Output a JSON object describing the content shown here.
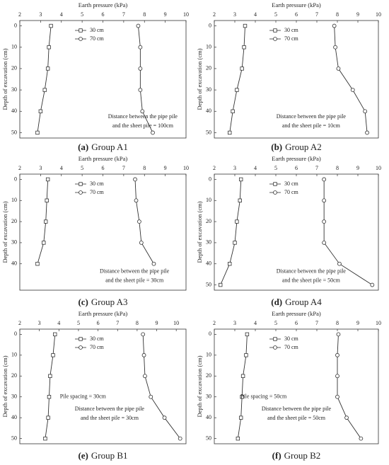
{
  "chart_data": [
    {
      "type": "line",
      "caption_label": "(a)",
      "caption": "Group A1",
      "x_label": "Earth pressure (kPa)",
      "y_label": "Depth of excavation (cm)",
      "xlim": [
        2,
        10
      ],
      "xticks": [
        2,
        3,
        4,
        5,
        6,
        7,
        8,
        9,
        10
      ],
      "ylim": [
        -2.5,
        52.5
      ],
      "yticks": [
        0,
        10,
        20,
        30,
        40,
        50
      ],
      "y": [
        0,
        10,
        20,
        30,
        40,
        50
      ],
      "series": [
        {
          "name": "30 cm",
          "marker": "square",
          "values": [
            3.5,
            3.4,
            3.35,
            3.2,
            3.0,
            2.85
          ]
        },
        {
          "name": "70 cm",
          "marker": "circle",
          "values": [
            7.7,
            7.8,
            7.8,
            7.8,
            7.9,
            8.4
          ]
        }
      ],
      "annotations": [
        "Distance between the pipe pile",
        "and the sheet pile = 100cm"
      ]
    },
    {
      "type": "line",
      "caption_label": "(b)",
      "caption": "Group A2",
      "x_label": "Earth pressure (kPa)",
      "y_label": "Depth of excavation (cm)",
      "xlim": [
        2,
        10
      ],
      "xticks": [
        2,
        3,
        4,
        5,
        6,
        7,
        8,
        9,
        10
      ],
      "ylim": [
        -2.5,
        52.5
      ],
      "yticks": [
        0,
        10,
        20,
        30,
        40,
        50
      ],
      "y": [
        0,
        10,
        20,
        30,
        40,
        50
      ],
      "series": [
        {
          "name": "30 cm",
          "marker": "square",
          "values": [
            3.5,
            3.45,
            3.35,
            3.1,
            2.9,
            2.75
          ]
        },
        {
          "name": "70 cm",
          "marker": "circle",
          "values": [
            7.85,
            7.9,
            8.05,
            8.75,
            9.35,
            9.45
          ]
        }
      ],
      "annotations": [
        "Distance between the pipe pile",
        "and the sheet pile = 10cm"
      ]
    },
    {
      "type": "line",
      "caption_label": "(c)",
      "caption": "Group A3",
      "x_label": "Earth pressure (kPa)",
      "y_label": "Depth of excavation (cm)",
      "xlim": [
        2,
        10
      ],
      "xticks": [
        2,
        3,
        4,
        5,
        6,
        7,
        8,
        9,
        10
      ],
      "ylim": [
        -2.5,
        52.5
      ],
      "yticks": [
        0,
        10,
        20,
        30,
        40
      ],
      "y": [
        0,
        10,
        20,
        30,
        40
      ],
      "series": [
        {
          "name": "30 cm",
          "marker": "square",
          "values": [
            3.35,
            3.3,
            3.25,
            3.15,
            2.85
          ]
        },
        {
          "name": "70 cm",
          "marker": "circle",
          "values": [
            7.55,
            7.6,
            7.75,
            7.85,
            8.45
          ]
        }
      ],
      "annotations": [
        "Distance between the pipe pile",
        "and the sheet pile = 30cm"
      ]
    },
    {
      "type": "line",
      "caption_label": "(d)",
      "caption": "Group A4",
      "x_label": "Earth pressure (kPa)",
      "y_label": "Depth of excavation (cm)",
      "xlim": [
        2,
        10
      ],
      "xticks": [
        2,
        3,
        4,
        5,
        6,
        7,
        8,
        9,
        10
      ],
      "ylim": [
        -2.5,
        52.5
      ],
      "yticks": [
        0,
        10,
        20,
        30,
        40,
        50
      ],
      "y": [
        0,
        10,
        20,
        30,
        40,
        50
      ],
      "series": [
        {
          "name": "30 cm",
          "marker": "square",
          "values": [
            3.3,
            3.25,
            3.1,
            3.0,
            2.75,
            2.3
          ]
        },
        {
          "name": "70 cm",
          "marker": "circle",
          "values": [
            7.35,
            7.35,
            7.35,
            7.35,
            8.1,
            9.7
          ]
        }
      ],
      "annotations": [
        "Distance between the pipe pile",
        "and the sheet pile = 50cm"
      ]
    },
    {
      "type": "line",
      "caption_label": "(e)",
      "caption": "Group B1",
      "x_label": "Earth pressure (kPa)",
      "y_label": "Depth of excavation (cm)",
      "xlim": [
        2,
        10.5
      ],
      "xticks": [
        2,
        3,
        4,
        5,
        6,
        7,
        8,
        9,
        10
      ],
      "ylim": [
        -2.5,
        52.5
      ],
      "yticks": [
        0,
        10,
        20,
        30,
        40,
        50
      ],
      "y": [
        0,
        10,
        20,
        30,
        40,
        50
      ],
      "series": [
        {
          "name": "30 cm",
          "marker": "square",
          "values": [
            3.8,
            3.7,
            3.55,
            3.5,
            3.45,
            3.3
          ]
        },
        {
          "name": "70 cm",
          "marker": "circle",
          "values": [
            8.3,
            8.35,
            8.4,
            8.7,
            9.4,
            10.2
          ]
        }
      ],
      "annotations": [
        "Pile spacing = 30cm",
        "Distance between the pipe pile",
        "and the sheet pile = 30cm"
      ]
    },
    {
      "type": "line",
      "caption_label": "(f)",
      "caption": "Group B2",
      "x_label": "Earth pressure (kPa)",
      "y_label": "Depth of excavation (cm)",
      "xlim": [
        2,
        10
      ],
      "xticks": [
        2,
        3,
        4,
        5,
        6,
        7,
        8,
        9,
        10
      ],
      "ylim": [
        -2.5,
        52.5
      ],
      "yticks": [
        0,
        10,
        20,
        30,
        40,
        50
      ],
      "y": [
        0,
        10,
        20,
        30,
        40,
        50
      ],
      "series": [
        {
          "name": "30 cm",
          "marker": "square",
          "values": [
            3.6,
            3.55,
            3.4,
            3.35,
            3.3,
            3.15
          ]
        },
        {
          "name": "70 cm",
          "marker": "circle",
          "values": [
            8.05,
            8.0,
            8.0,
            8.0,
            8.45,
            9.15
          ]
        }
      ],
      "annotations": [
        "Pile spacing = 50cm",
        "Distance between the pipe pile",
        "and the sheet pile = 50cm"
      ]
    }
  ]
}
